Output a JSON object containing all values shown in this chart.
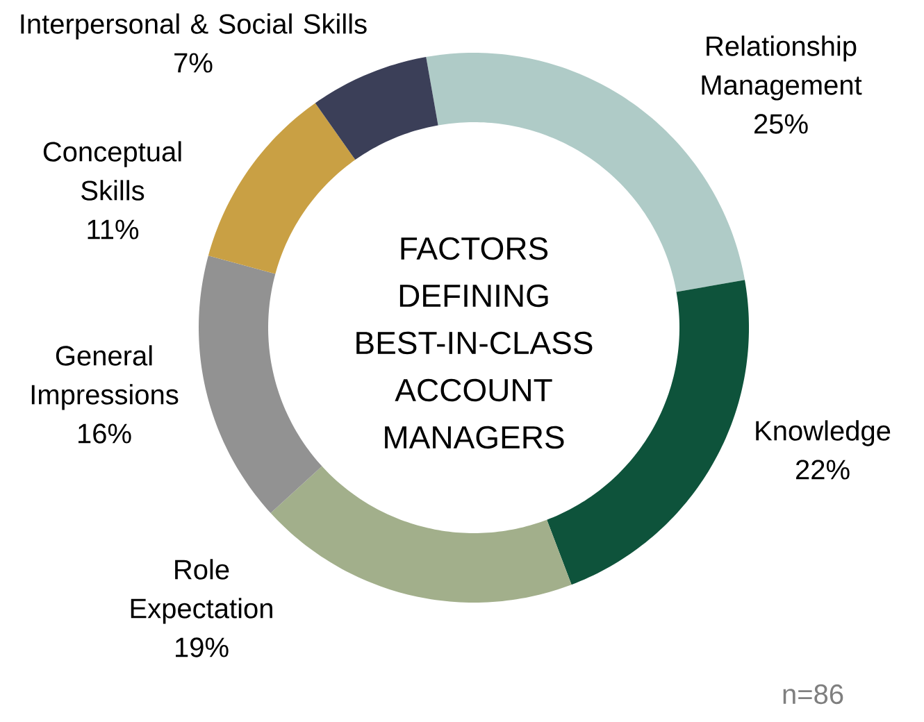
{
  "chart_data": {
    "type": "donut",
    "title": "FACTORS DEFINING BEST-IN-CLASS ACCOUNT MANAGERS",
    "categories": [
      "Relationship Management",
      "Knowledge",
      "Role Expectation",
      "General Impressions",
      "Conceptual Skills",
      "Interpersonal & Social Skills"
    ],
    "values": [
      25,
      22,
      19,
      16,
      11,
      7
    ],
    "colors": [
      "#afcbc7",
      "#0e533b",
      "#a2af8b",
      "#929292",
      "#c9a044",
      "#3b3f58"
    ],
    "value_labels": [
      "25%",
      "22%",
      "19%",
      "16%",
      "11%",
      "7%"
    ],
    "annotations": [
      "n=86"
    ]
  }
}
